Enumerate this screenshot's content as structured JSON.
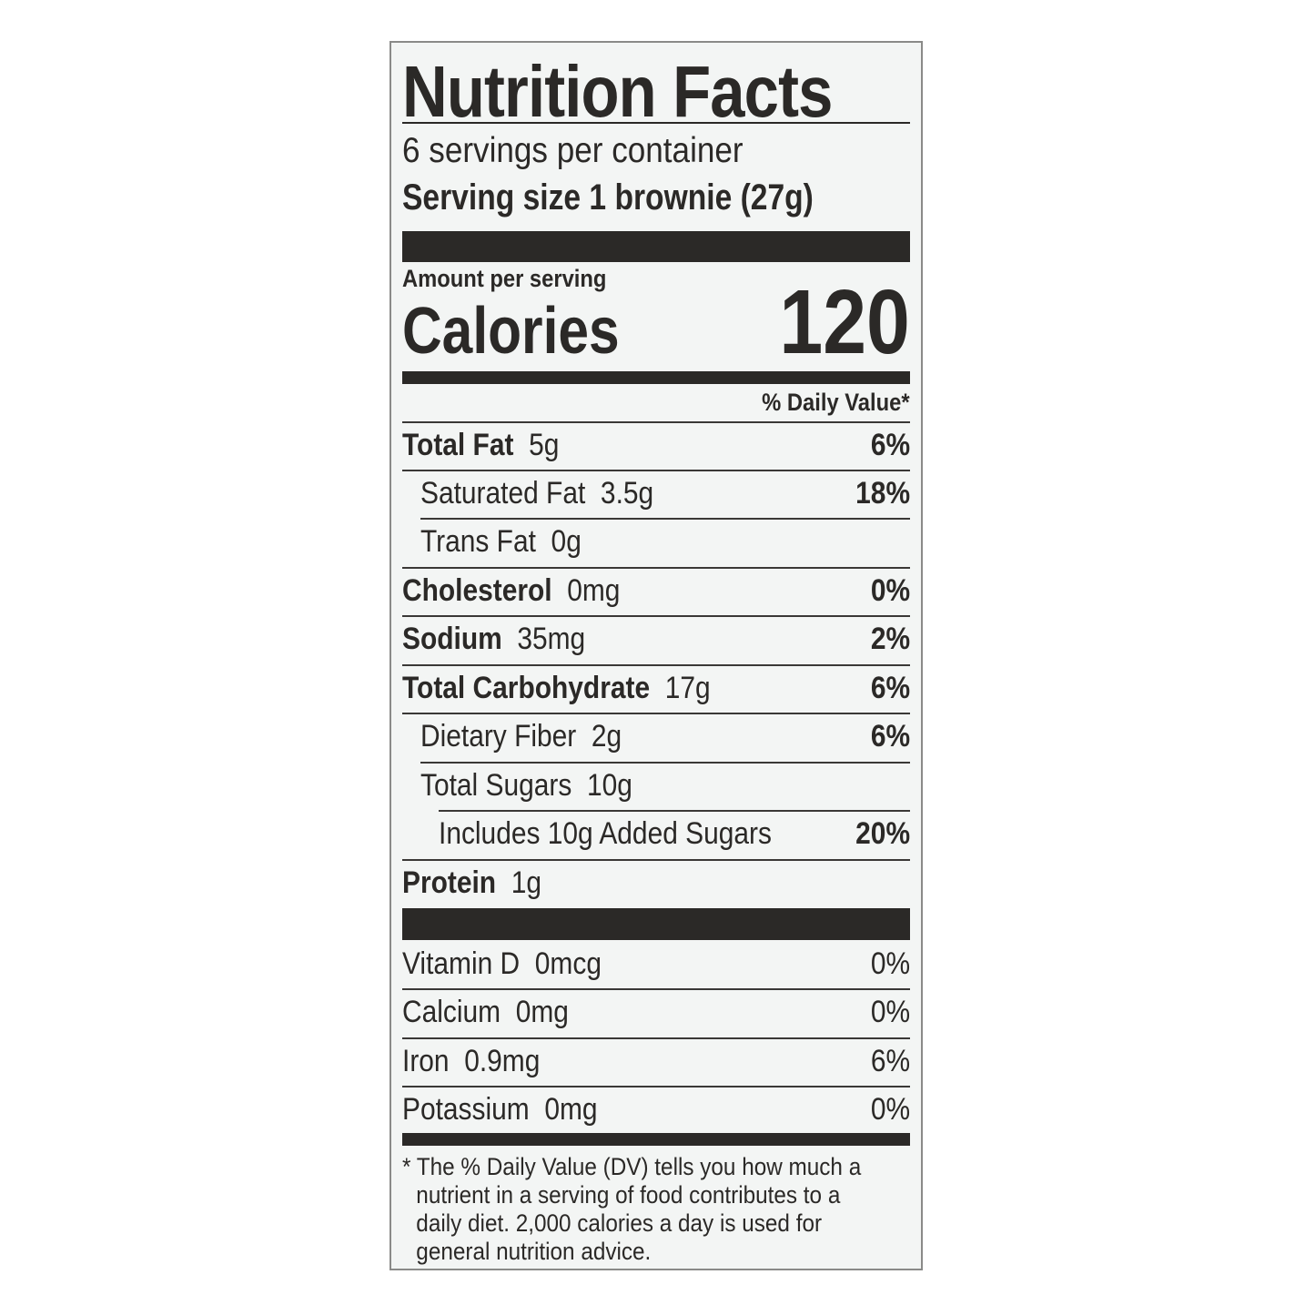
{
  "label": {
    "title": "Nutrition Facts",
    "servings_per_container": "6 servings per container",
    "serving_size": "Serving size 1 brownie (27g)",
    "amount_per_serving": "Amount per serving",
    "calories_label": "Calories",
    "calories_value": "120",
    "daily_value_header": "% Daily Value*",
    "nutrients": [
      {
        "name": "Total Fat",
        "amount": "5g",
        "dv": "6%"
      },
      {
        "name": "Saturated Fat",
        "amount": "3.5g",
        "dv": "18%"
      },
      {
        "name": "Trans Fat",
        "amount": "0g",
        "dv": ""
      },
      {
        "name": "Cholesterol",
        "amount": "0mg",
        "dv": "0%"
      },
      {
        "name": "Sodium",
        "amount": "35mg",
        "dv": "2%"
      },
      {
        "name": "Total Carbohydrate",
        "amount": "17g",
        "dv": "6%"
      },
      {
        "name": "Dietary Fiber",
        "amount": "2g",
        "dv": "6%"
      },
      {
        "name": "Total Sugars",
        "amount": "10g",
        "dv": ""
      },
      {
        "name": "Includes 10g Added Sugars",
        "amount": "",
        "dv": "20%"
      },
      {
        "name": "Protein",
        "amount": "1g",
        "dv": ""
      }
    ],
    "vitamins": [
      {
        "name": "Vitamin D",
        "amount": "0mcg",
        "dv": "0%"
      },
      {
        "name": "Calcium",
        "amount": "0mg",
        "dv": "0%"
      },
      {
        "name": "Iron",
        "amount": "0.9mg",
        "dv": "6%"
      },
      {
        "name": "Potassium",
        "amount": "0mg",
        "dv": "0%"
      }
    ],
    "footnote": [
      "* The % Daily Value (DV) tells you how much a",
      "nutrient in a serving of food contributes to a",
      "daily diet. 2,000 calories a day is used for",
      "general nutrition advice."
    ]
  },
  "colors": {
    "ink": "#2b2927",
    "background": "#f3f5f4"
  }
}
